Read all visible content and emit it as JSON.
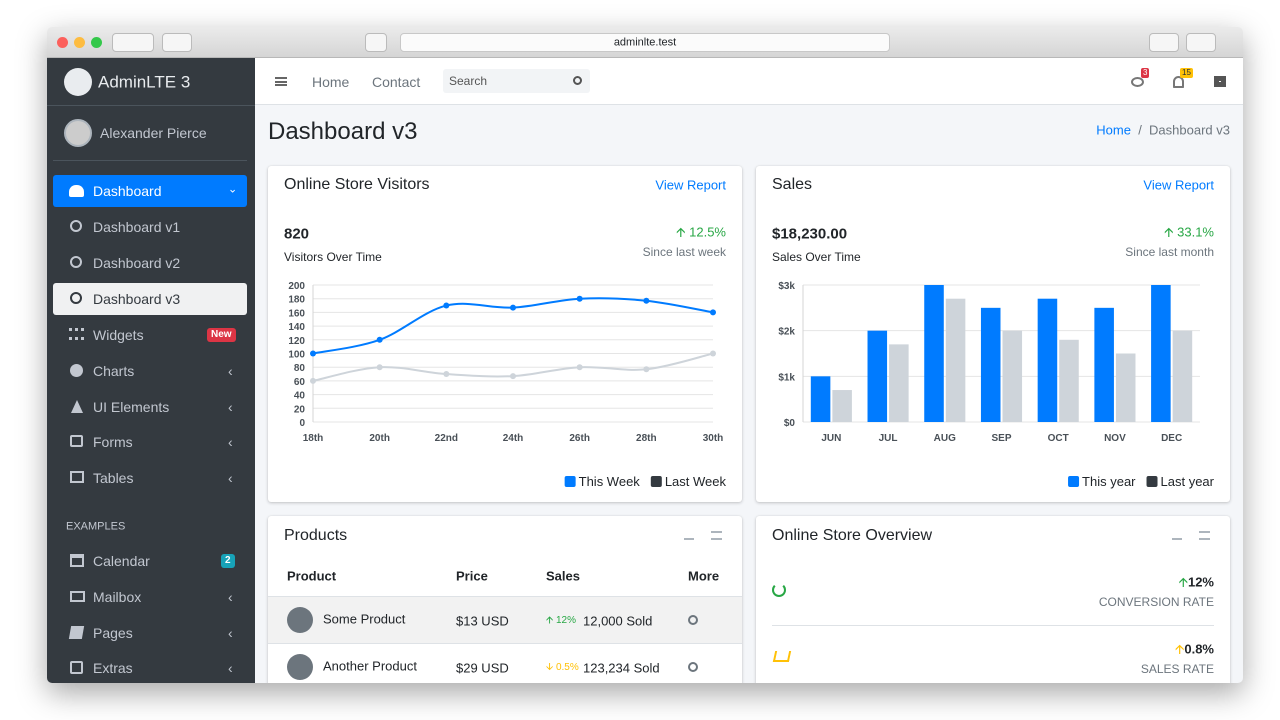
{
  "browser": {
    "url": "adminlte.test"
  },
  "sidebar": {
    "brand": "AdminLTE 3",
    "user": "Alexander Pierce",
    "menu": [
      {
        "label": "Dashboard"
      },
      {
        "label": "Dashboard v1"
      },
      {
        "label": "Dashboard v2"
      },
      {
        "label": "Dashboard v3"
      },
      {
        "label": "Widgets",
        "badge": "New"
      },
      {
        "label": "Charts"
      },
      {
        "label": "UI Elements"
      },
      {
        "label": "Forms"
      },
      {
        "label": "Tables"
      }
    ],
    "section": "EXAMPLES",
    "examples": [
      {
        "label": "Calendar",
        "badge": "2"
      },
      {
        "label": "Mailbox"
      },
      {
        "label": "Pages"
      },
      {
        "label": "Extras"
      }
    ]
  },
  "navbar": {
    "links": [
      "Home",
      "Contact"
    ],
    "search_placeholder": "Search",
    "messages_badge": "3",
    "notifications_badge": "15"
  },
  "content_header": {
    "title": "Dashboard v3",
    "breadcrumb": [
      "Home",
      "Dashboard v3"
    ]
  },
  "cards": [
    {
      "title": "Online Store Visitors",
      "link": "View Report",
      "stat": "820",
      "stat_label": "Visitors Over Time",
      "change": "12.5%",
      "since": "Since last week"
    },
    {
      "title": "Sales",
      "link": "View Report",
      "stat": "$18,230.00",
      "stat_label": "Sales Over Time",
      "change": "33.1%",
      "since": "Since last month"
    }
  ],
  "chart_data": [
    {
      "type": "line",
      "categories": [
        "18th",
        "20th",
        "22nd",
        "24th",
        "26th",
        "28th",
        "30th"
      ],
      "series": [
        {
          "name": "This Week",
          "color": "#007bff",
          "values": [
            100,
            120,
            170,
            167,
            180,
            177,
            160
          ]
        },
        {
          "name": "Last Week",
          "color": "#ced4da",
          "legend_color": "#343a40",
          "values": [
            60,
            80,
            70,
            67,
            80,
            77,
            100
          ]
        }
      ],
      "ylim": [
        0,
        200
      ],
      "yticks": [
        0,
        20,
        40,
        60,
        80,
        100,
        120,
        140,
        160,
        180,
        200
      ],
      "grid": true,
      "legend": "bottom-right"
    },
    {
      "type": "bar",
      "categories": [
        "JUN",
        "JUL",
        "AUG",
        "SEP",
        "OCT",
        "NOV",
        "DEC"
      ],
      "series": [
        {
          "name": "This year",
          "color": "#007bff",
          "values": [
            1000,
            2000,
            3000,
            2500,
            2700,
            2500,
            3000
          ]
        },
        {
          "name": "Last year",
          "color": "#ced4da",
          "legend_color": "#343a40",
          "values": [
            700,
            1700,
            2700,
            2000,
            1800,
            1500,
            2000
          ]
        }
      ],
      "ylim": [
        0,
        3000
      ],
      "yticks": [
        {
          "value": 0,
          "label": "$0"
        },
        {
          "value": 1000,
          "label": "$1k"
        },
        {
          "value": 2000,
          "label": "$2k"
        },
        {
          "value": 3000,
          "label": "$3k"
        }
      ],
      "grid": true,
      "legend": "bottom-right"
    }
  ],
  "products": {
    "title": "Products",
    "columns": [
      "Product",
      "Price",
      "Sales",
      "More"
    ],
    "rows": [
      [
        "Some Product",
        "$13 USD",
        "12%",
        "12,000 Sold"
      ],
      [
        "Another Product",
        "$29 USD",
        "0.5%",
        "123,234 Sold"
      ]
    ]
  },
  "overview": {
    "title": "Online Store Overview",
    "items": [
      {
        "value": "12%",
        "label": "CONVERSION RATE"
      },
      {
        "value": "0.8%",
        "label": "SALES RATE"
      }
    ]
  }
}
